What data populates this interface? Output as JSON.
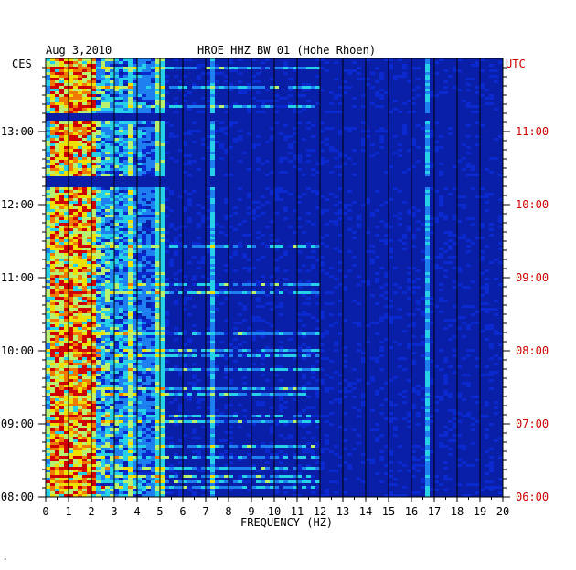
{
  "chart_data": {
    "type": "heatmap",
    "title": {
      "date": "Aug 3,2010",
      "station": "HROE HHZ BW 01 (Hohe Rhoen)"
    },
    "left_axis_label": "CES",
    "right_axis_label": "UTC",
    "xlabel": "FREQUENCY (HZ)",
    "xlim": [
      0,
      20
    ],
    "x_ticks": [
      "0",
      "1",
      "2",
      "3",
      "4",
      "5",
      "6",
      "7",
      "8",
      "9",
      "10",
      "11",
      "12",
      "13",
      "14",
      "15",
      "16",
      "17",
      "18",
      "19",
      "20"
    ],
    "time_range_ces": [
      "08:00",
      "14:00"
    ],
    "left_ticks": [
      "13:00",
      "12:00",
      "11:00",
      "10:00",
      "09:00",
      "08:00"
    ],
    "right_ticks": [
      "11:00",
      "10:00",
      "09:00",
      "08:00",
      "07:00",
      "06:00"
    ],
    "colors": {
      "background": "#0a1fa8",
      "dark": "#061275",
      "axis": "#000000",
      "utc_text": "#cc0000",
      "cmap": [
        "#06137a",
        "#0a2ad0",
        "#1e7ff0",
        "#25d0e8",
        "#b8f070",
        "#f0e000",
        "#f07a00",
        "#d00000"
      ]
    },
    "energy_profile": {
      "strong_band_hz": [
        0.2,
        2.2
      ],
      "moderate_band_hz": [
        2.2,
        5.2
      ],
      "spectral_lines_hz": [
        3.7,
        5.0,
        7.3,
        16.7
      ],
      "quiet_above_hz": 6
    }
  }
}
